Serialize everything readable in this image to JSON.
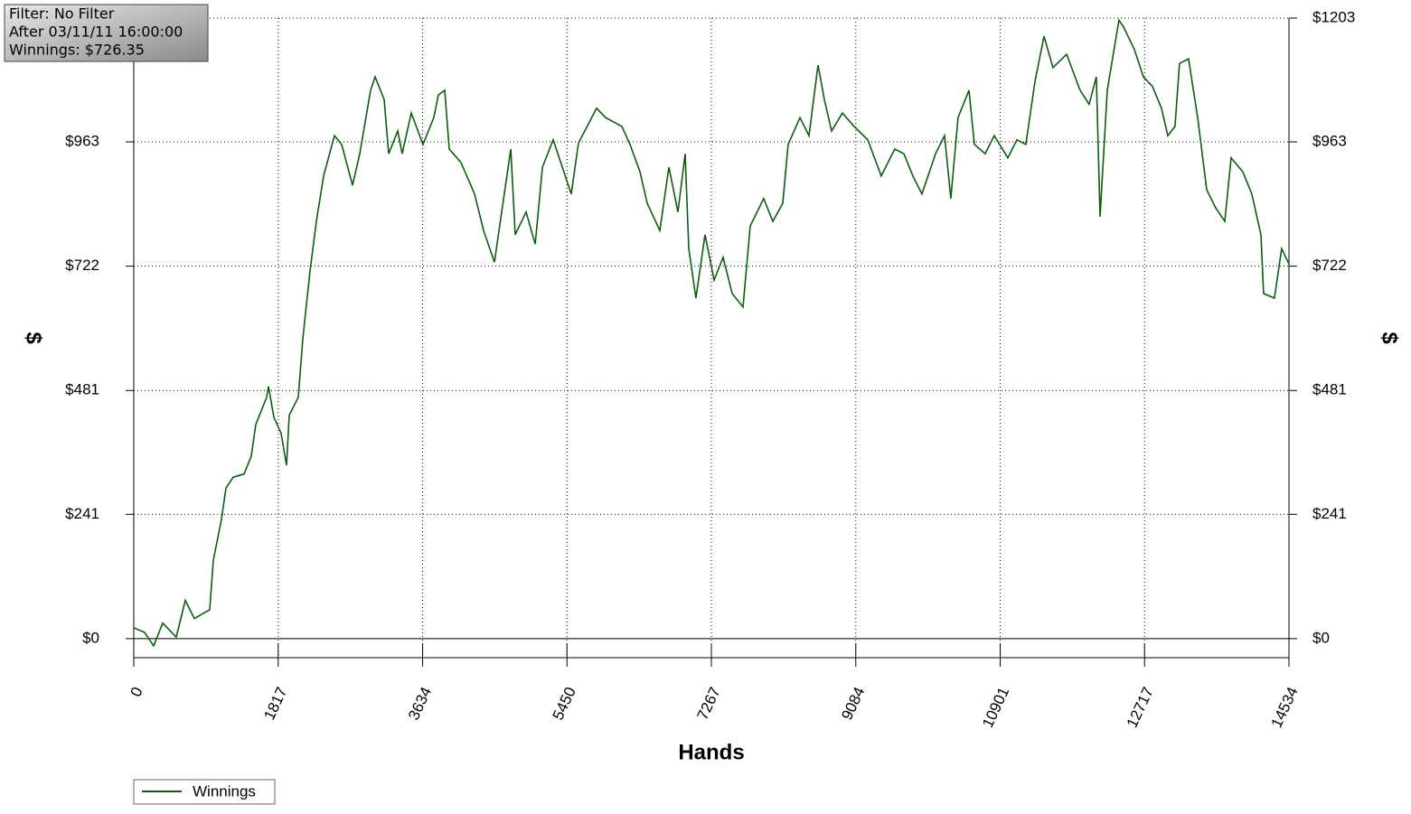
{
  "chart_data": {
    "type": "line",
    "annotations": [
      "Filter: No Filter",
      "After 03/11/11 16:00:00",
      "Winnings: $726.35"
    ],
    "x_label": "Hands",
    "y_label": "$",
    "x": [
      0,
      136,
      250,
      364,
      535,
      648,
      762,
      955,
      1001,
      1103,
      1160,
      1251,
      1387,
      1478,
      1535,
      1672,
      1694,
      1763,
      1854,
      1922,
      1956,
      2070,
      2127,
      2218,
      2297,
      2388,
      2525,
      2616,
      2752,
      2843,
      2980,
      3037,
      3150,
      3207,
      3321,
      3377,
      3491,
      3639,
      3775,
      3832,
      3912,
      3969,
      4117,
      4287,
      4401,
      4538,
      4629,
      4743,
      4799,
      4936,
      5050,
      5141,
      5277,
      5504,
      5595,
      5823,
      5936,
      6141,
      6244,
      6369,
      6460,
      6619,
      6733,
      6846,
      6937,
      6983,
      7073,
      7187,
      7301,
      7415,
      7528,
      7665,
      7756,
      7926,
      8040,
      8165,
      8233,
      8381,
      8495,
      8609,
      8688,
      8779,
      8916,
      9063,
      9234,
      9404,
      9575,
      9689,
      9802,
      9916,
      10087,
      10201,
      10280,
      10371,
      10508,
      10576,
      10712,
      10826,
      10997,
      11111,
      11224,
      11338,
      11452,
      11565,
      11736,
      11906,
      12020,
      12111,
      12157,
      12248,
      12395,
      12452,
      12589,
      12702,
      12816,
      12930,
      13010,
      13100,
      13157,
      13271,
      13385,
      13499,
      13612,
      13726,
      13806,
      13953,
      14067,
      14181,
      14215,
      14351,
      14442,
      14534
    ],
    "series": [
      {
        "name": "Winnings",
        "color": "#0b5e0b",
        "values": [
          21,
          12,
          -14,
          30,
          3,
          74,
          39,
          56,
          152,
          231,
          292,
          313,
          319,
          354,
          415,
          468,
          489,
          429,
          398,
          336,
          433,
          468,
          581,
          713,
          809,
          897,
          975,
          958,
          879,
          940,
          1063,
          1089,
          1045,
          940,
          984,
          940,
          1019,
          958,
          1010,
          1054,
          1063,
          949,
          923,
          862,
          791,
          730,
          827,
          949,
          783,
          827,
          765,
          914,
          967,
          862,
          961,
          1028,
          1010,
          993,
          958,
          905,
          844,
          791,
          914,
          827,
          940,
          756,
          660,
          783,
          695,
          739,
          669,
          643,
          800,
          853,
          809,
          844,
          958,
          1010,
          975,
          1112,
          1045,
          984,
          1019,
          993,
          967,
          897,
          949,
          940,
          897,
          862,
          940,
          975,
          853,
          1010,
          1063,
          958,
          940,
          975,
          932,
          967,
          958,
          1080,
          1168,
          1107,
          1133,
          1063,
          1036,
          1089,
          818,
          1063,
          1199,
          1186,
          1142,
          1089,
          1071,
          1028,
          975,
          993,
          1115,
          1124,
          1010,
          870,
          835,
          809,
          932,
          905,
          862,
          783,
          669,
          660,
          756,
          726.35
        ]
      }
    ],
    "xlim": [
      0,
      14534
    ],
    "xticks": [
      0,
      1817,
      3634,
      5450,
      7267,
      9084,
      10901,
      12717,
      14534
    ],
    "ylim": [
      -37,
      1203
    ],
    "yticks": [
      {
        "value": 0,
        "label": "$0"
      },
      {
        "value": 241,
        "label": "$241"
      },
      {
        "value": 481,
        "label": "$481"
      },
      {
        "value": 722,
        "label": "$722"
      },
      {
        "value": 963,
        "label": "$963"
      },
      {
        "value": 1203,
        "label": "$1203"
      }
    ],
    "grid": true
  }
}
